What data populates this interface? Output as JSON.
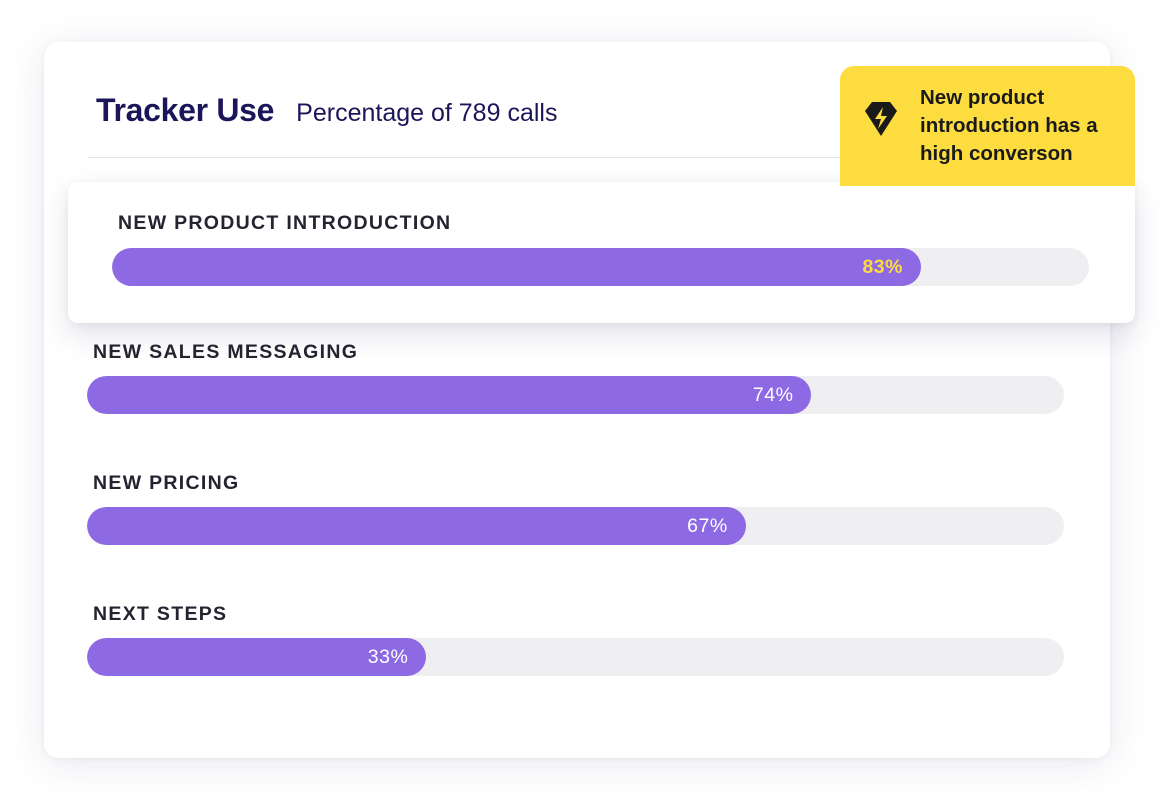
{
  "header": {
    "title": "Tracker Use",
    "subtitle": "Percentage of 789 calls"
  },
  "callout": {
    "icon": "tracker-diamond-icon",
    "text": "New product introduction has a high conversion",
    "text_as_shown": "New product introduction has a high converson",
    "background_color": "#fddc3f"
  },
  "colors": {
    "bar_fill": "#8d69e4",
    "bar_track": "#efeff1",
    "title": "#1c1559",
    "highlight_value": "#fddc3f"
  },
  "trackers": [
    {
      "label": "NEW PRODUCT INTRODUCTION",
      "value": 83,
      "value_label": "83%",
      "highlighted": true
    },
    {
      "label": "NEW SALES MESSAGING",
      "value": 74,
      "value_label": "74%",
      "highlighted": false
    },
    {
      "label": "NEW PRICING",
      "value": 67,
      "value_label": "67%",
      "highlighted": false
    },
    {
      "label": "NEXT STEPS",
      "value": 33,
      "value_label": "33%",
      "highlighted": false
    }
  ]
}
